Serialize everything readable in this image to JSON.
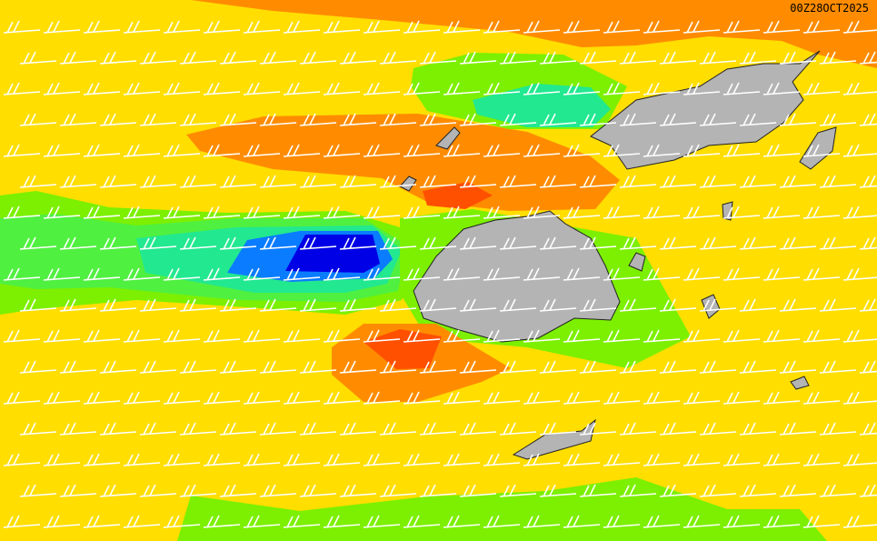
{
  "timestamp": "00Z28OCT2025"
}
